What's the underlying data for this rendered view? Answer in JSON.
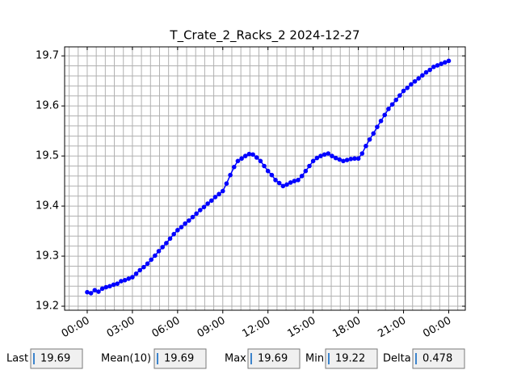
{
  "chart_data": {
    "type": "line",
    "title": "T_Crate_2_Racks_2 2024-12-27",
    "x": [
      0,
      0.25,
      0.5,
      0.75,
      1,
      1.25,
      1.5,
      1.75,
      2,
      2.25,
      2.5,
      2.75,
      3,
      3.25,
      3.5,
      3.75,
      4,
      4.25,
      4.5,
      4.75,
      5,
      5.25,
      5.5,
      5.75,
      6,
      6.25,
      6.5,
      6.75,
      7,
      7.25,
      7.5,
      7.75,
      8,
      8.25,
      8.5,
      8.75,
      9,
      9.25,
      9.5,
      9.75,
      10,
      10.25,
      10.5,
      10.75,
      11,
      11.25,
      11.5,
      11.75,
      12,
      12.25,
      12.5,
      12.75,
      13,
      13.25,
      13.5,
      13.75,
      14,
      14.25,
      14.5,
      14.75,
      15,
      15.25,
      15.5,
      15.75,
      16,
      16.25,
      16.5,
      16.75,
      17,
      17.25,
      17.5,
      17.75,
      18,
      18.25,
      18.5,
      18.75,
      19,
      19.25,
      19.5,
      19.75,
      20,
      20.25,
      20.5,
      20.75,
      21,
      21.25,
      21.5,
      21.75,
      22,
      22.25,
      22.5,
      22.75,
      23,
      23.25,
      23.5,
      23.75,
      24
    ],
    "series": [
      {
        "color": "#0000ff",
        "values": [
          19.228,
          19.226,
          19.232,
          19.229,
          19.235,
          19.238,
          19.24,
          19.243,
          19.245,
          19.25,
          19.252,
          19.255,
          19.258,
          19.265,
          19.272,
          19.278,
          19.285,
          19.293,
          19.301,
          19.31,
          19.318,
          19.326,
          19.335,
          19.344,
          19.352,
          19.358,
          19.365,
          19.371,
          19.378,
          19.385,
          19.392,
          19.398,
          19.405,
          19.411,
          19.418,
          19.424,
          19.43,
          19.445,
          19.462,
          19.478,
          19.49,
          19.495,
          19.5,
          19.504,
          19.503,
          19.497,
          19.49,
          19.48,
          19.47,
          19.462,
          19.452,
          19.446,
          19.44,
          19.443,
          19.447,
          19.45,
          19.452,
          19.46,
          19.47,
          19.48,
          19.49,
          19.496,
          19.5,
          19.503,
          19.505,
          19.5,
          19.496,
          19.493,
          19.49,
          19.492,
          19.494,
          19.495,
          19.495,
          19.505,
          19.52,
          19.533,
          19.545,
          19.558,
          19.57,
          19.582,
          19.594,
          19.603,
          19.612,
          19.621,
          19.63,
          19.636,
          19.643,
          19.649,
          19.655,
          19.661,
          19.667,
          19.672,
          19.678,
          19.681,
          19.684,
          19.687,
          19.69
        ]
      }
    ],
    "xlim": [
      -1.5,
      25.1
    ],
    "xticks": [
      {
        "value": 0,
        "label": "00:00"
      },
      {
        "value": 3,
        "label": "03:00"
      },
      {
        "value": 6,
        "label": "06:00"
      },
      {
        "value": 9,
        "label": "09:00"
      },
      {
        "value": 12,
        "label": "12:00"
      },
      {
        "value": 15,
        "label": "15:00"
      },
      {
        "value": 18,
        "label": "18:00"
      },
      {
        "value": 21,
        "label": "21:00"
      },
      {
        "value": 24,
        "label": "00:00"
      }
    ],
    "ylim": [
      19.192,
      19.718
    ],
    "yticks": [
      19.2,
      19.3,
      19.4,
      19.5,
      19.6,
      19.7
    ],
    "minor_xticks": [
      -1.2,
      -0.6,
      0,
      0.6,
      1.2,
      1.8,
      2.4,
      3,
      3.6,
      4.2,
      4.8,
      5.4,
      6,
      6.6,
      7.2,
      7.8,
      8.4,
      9,
      9.6,
      10.2,
      10.8,
      11.4,
      12,
      12.6,
      13.2,
      13.8,
      14.4,
      15,
      15.6,
      16.2,
      16.8,
      17.4,
      18,
      18.6,
      19.2,
      19.8,
      20.4,
      21,
      21.6,
      22.2,
      22.8,
      23.4,
      24,
      24.6
    ],
    "minor_yticks": [
      19.2,
      19.22,
      19.24,
      19.26,
      19.28,
      19.3,
      19.32,
      19.34,
      19.36,
      19.38,
      19.4,
      19.42,
      19.44,
      19.46,
      19.48,
      19.5,
      19.52,
      19.54,
      19.56,
      19.58,
      19.6,
      19.62,
      19.64,
      19.66,
      19.68,
      19.7
    ],
    "grid": true
  },
  "stats": [
    {
      "label": "Last",
      "value": 19.69
    },
    {
      "label": "Mean(10)",
      "value": 19.69
    },
    {
      "label": "Max",
      "value": 19.69
    },
    {
      "label": "Min",
      "value": 19.22
    },
    {
      "label": "Delta",
      "value": 0.478
    }
  ]
}
